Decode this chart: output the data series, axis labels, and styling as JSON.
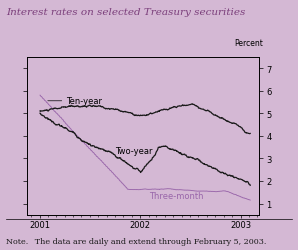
{
  "title": "Interest rates on selected Treasury securities",
  "note": "Note.  The data are daily and extend through February 5, 2003.",
  "ylabel": "Percent",
  "ylim": [
    0.5,
    7.5
  ],
  "yticks": [
    1,
    2,
    3,
    4,
    5,
    6,
    7
  ],
  "bg_color": "#d4b8d4",
  "plot_bg_color": "#d4b8d4",
  "white_strip_color": "#ffffff",
  "ten_year_color": "#1a1a1a",
  "two_year_color": "#1a1a1a",
  "three_month_color": "#9966aa",
  "title_color": "#7b3f7b",
  "note_color": "#1a1a1a",
  "title_fontsize": 7.5,
  "note_fontsize": 5.8,
  "label_fontsize": 6.0,
  "tick_fontsize": 6.0,
  "percent_fontsize": 5.5,
  "series_labels": {
    "ten_year": "Ten-year",
    "two_year": "Two-year",
    "three_month": "Three-month"
  }
}
